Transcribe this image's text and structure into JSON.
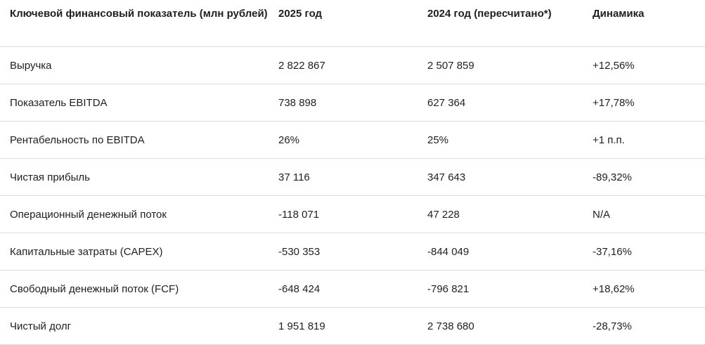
{
  "table": {
    "headers": [
      "Ключевой финансовый показатель (млн рублей)",
      "2025 год",
      "2024 год (пересчитано*)",
      "Динамика"
    ],
    "rows": [
      [
        "Выручка",
        "2 822 867",
        "2 507 859",
        "+12,56%"
      ],
      [
        "Показатель EBITDA",
        "738 898",
        "627 364",
        "+17,78%"
      ],
      [
        "Рентабельность по EBITDA",
        "26%",
        "25%",
        "+1 п.п."
      ],
      [
        "Чистая прибыль",
        "37 116",
        "347 643",
        "-89,32%"
      ],
      [
        "Операционный денежный поток",
        "-118 071",
        "47 228",
        "N/A"
      ],
      [
        "Капитальные затраты (CAPEX)",
        "-530 353",
        "-844 049",
        "-37,16%"
      ],
      [
        "Свободный денежный поток (FCF)",
        "-648 424",
        "-796 821",
        "+18,62%"
      ],
      [
        "Чистый долг",
        "1 951 819",
        "2 738 680",
        "-28,73%"
      ]
    ]
  }
}
